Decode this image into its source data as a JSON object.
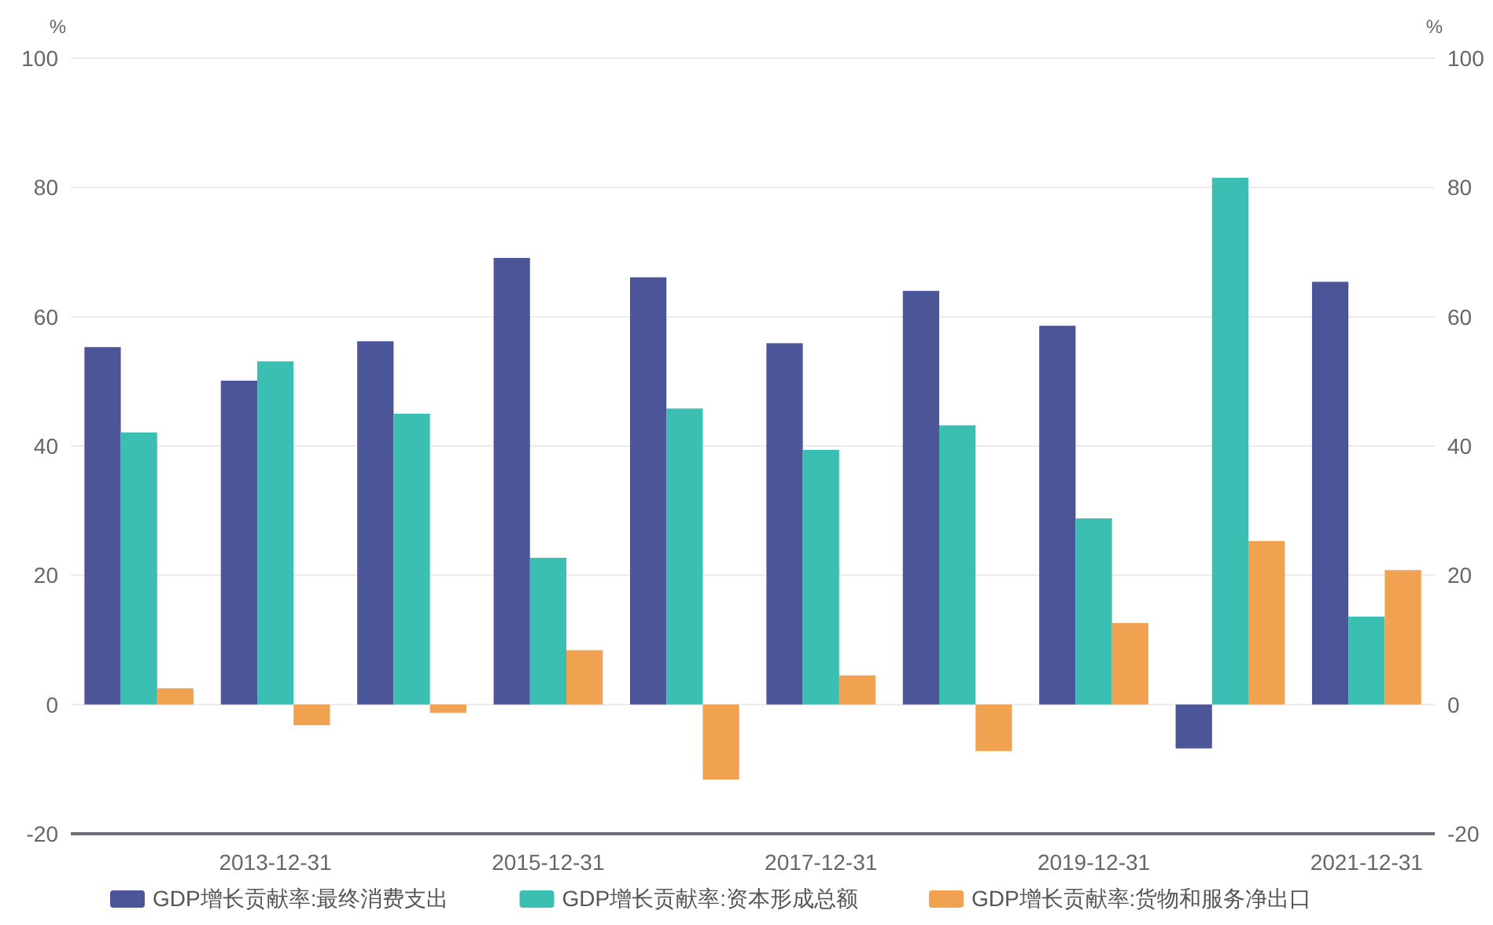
{
  "chart_data": {
    "type": "bar",
    "categories": [
      null,
      "2013-12-31",
      null,
      "2015-12-31",
      null,
      "2017-12-31",
      null,
      "2019-12-31",
      null,
      "2021-12-31"
    ],
    "series": [
      {
        "name": "GDP增长贡献率:最终消费支出",
        "color": "#4b5597",
        "values": [
          55.3,
          50.1,
          56.2,
          69.1,
          66.1,
          55.9,
          64.0,
          58.6,
          -6.8,
          65.4
        ]
      },
      {
        "name": "GDP增长贡献率:资本形成总额",
        "color": "#3bbfb3",
        "values": [
          42.1,
          53.1,
          45.0,
          22.7,
          45.8,
          39.4,
          43.2,
          28.8,
          81.5,
          13.6
        ]
      },
      {
        "name": "GDP增长贡献率:货物和服务净出口",
        "color": "#f0a250",
        "values": [
          2.5,
          -3.2,
          -1.3,
          8.4,
          -11.6,
          4.5,
          -7.2,
          12.6,
          25.3,
          20.8
        ]
      }
    ],
    "ylabel": "%",
    "y2label": "%",
    "ylim": [
      -20,
      100
    ],
    "yticks": [
      -20,
      0,
      20,
      40,
      60,
      80,
      100
    ],
    "y2lim": [
      -20,
      100
    ],
    "y2ticks": [
      -20,
      0,
      20,
      40,
      60,
      80,
      100
    ],
    "grid": "y",
    "legend": "bottom"
  }
}
